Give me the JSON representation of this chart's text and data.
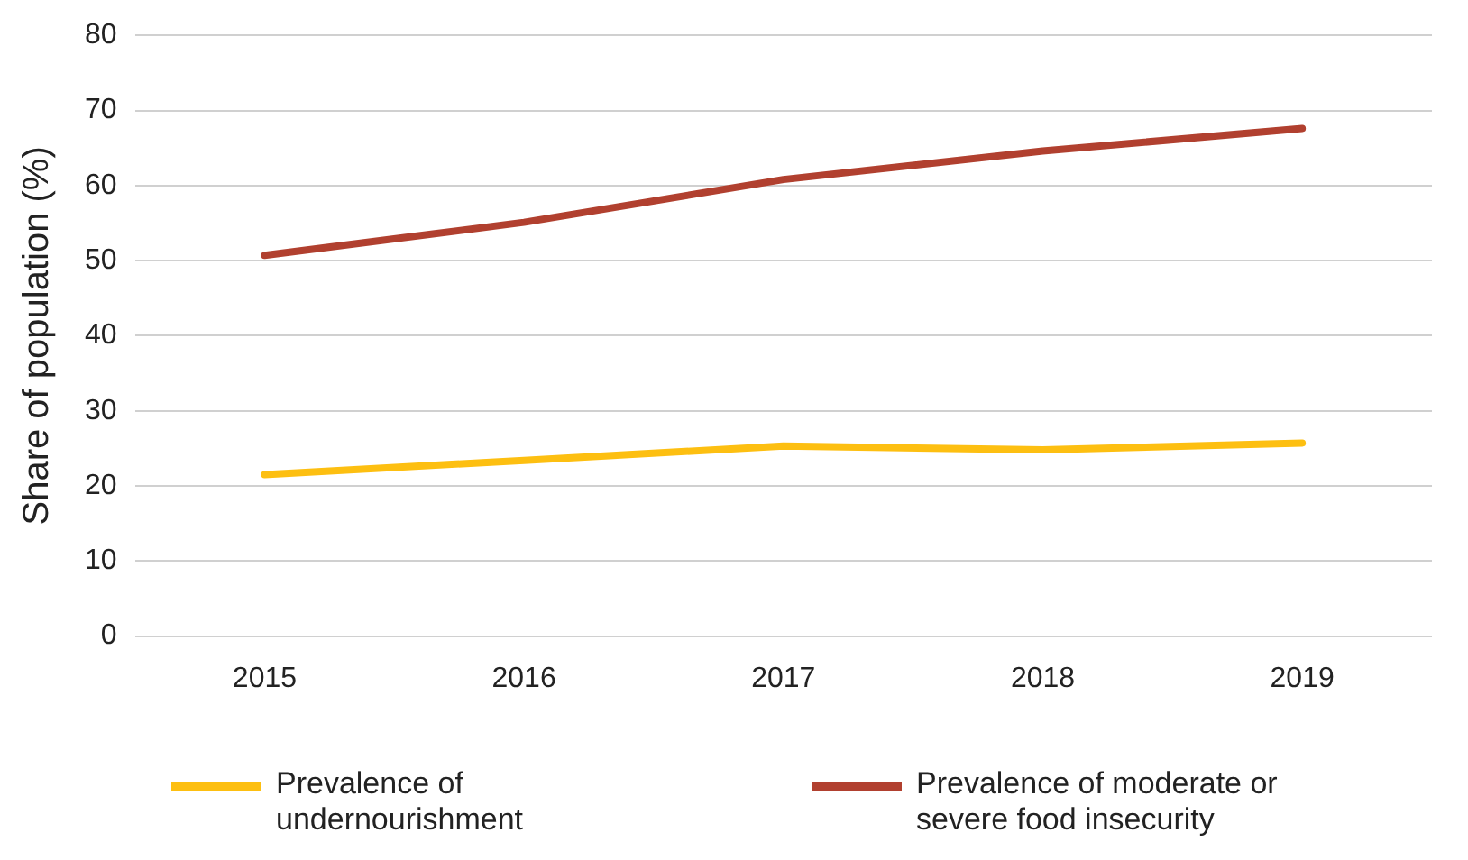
{
  "chart_data": {
    "type": "line",
    "ylabel": "Share of population (%)",
    "categories": [
      "2015",
      "2016",
      "2017",
      "2018",
      "2019"
    ],
    "series": [
      {
        "name": "Prevalence of undernourishment",
        "color": "#fdbf11",
        "values": [
          21.5,
          23.4,
          25.3,
          24.8,
          25.7
        ]
      },
      {
        "name": "Prevalence of moderate or severe food insecurity",
        "color": "#b1402f",
        "values": [
          50.7,
          55.1,
          60.8,
          64.6,
          67.6
        ]
      }
    ],
    "ylim": [
      0,
      80
    ],
    "yticks": [
      0,
      10,
      20,
      30,
      40,
      50,
      60,
      70,
      80
    ],
    "grid": "y",
    "legend": "bottom",
    "marker": "none",
    "line_style": "solid"
  }
}
